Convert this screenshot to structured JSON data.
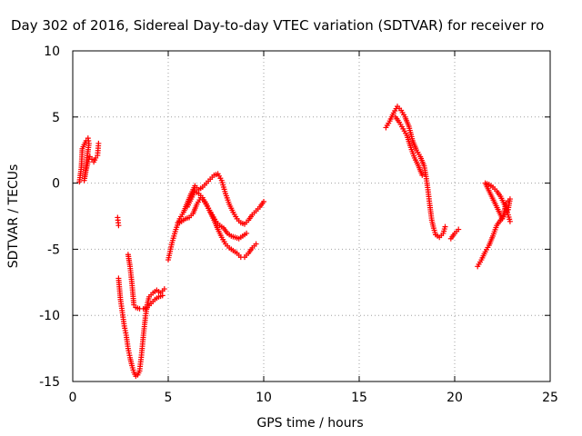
{
  "chart_data": {
    "type": "scatter",
    "title": "Day 302 of 2016, Sidereal Day-to-day VTEC variation (SDTVAR) for receiver ro",
    "xlabel": "GPS time / hours",
    "ylabel": "SDTVAR / TECUs",
    "xlim": [
      0,
      25
    ],
    "ylim": [
      -15,
      10
    ],
    "xticks": [
      0,
      5,
      10,
      15,
      20,
      25
    ],
    "yticks": [
      -15,
      -10,
      -5,
      0,
      5,
      10
    ],
    "xtick_labels": [
      "0",
      "5",
      "10",
      "15",
      "20",
      "25"
    ],
    "ytick_labels": [
      "-15",
      "-10",
      "-5",
      "0",
      "5",
      "10"
    ],
    "grid": true,
    "marker": "+",
    "series_color": "#ff0000",
    "segments": [
      [
        [
          0.35,
          0.1
        ],
        [
          0.45,
          1.2
        ],
        [
          0.5,
          2.6
        ],
        [
          0.6,
          2.9
        ],
        [
          0.7,
          3.2
        ],
        [
          0.8,
          3.4
        ],
        [
          0.85,
          3.0
        ],
        [
          0.6,
          0.2
        ],
        [
          0.7,
          1.0
        ],
        [
          0.8,
          1.6
        ],
        [
          0.9,
          2.0
        ],
        [
          1.0,
          1.8
        ],
        [
          1.1,
          1.6
        ],
        [
          1.2,
          1.9
        ],
        [
          1.3,
          2.1
        ],
        [
          1.35,
          3.0
        ]
      ],
      [
        [
          2.35,
          -2.6
        ],
        [
          2.4,
          -3.2
        ]
      ],
      [
        [
          2.4,
          -7.2
        ],
        [
          2.5,
          -8.8
        ],
        [
          2.6,
          -9.8
        ],
        [
          2.7,
          -10.8
        ],
        [
          2.8,
          -11.5
        ],
        [
          2.9,
          -12.5
        ],
        [
          3.0,
          -13.2
        ],
        [
          3.1,
          -13.8
        ],
        [
          3.2,
          -14.3
        ],
        [
          3.3,
          -14.6
        ],
        [
          3.4,
          -14.5
        ],
        [
          3.5,
          -14.2
        ],
        [
          3.6,
          -13.0
        ],
        [
          3.7,
          -11.5
        ],
        [
          3.8,
          -10.2
        ],
        [
          3.9,
          -9.2
        ],
        [
          4.0,
          -8.6
        ],
        [
          4.2,
          -8.3
        ],
        [
          4.4,
          -8.1
        ],
        [
          4.6,
          -8.3
        ],
        [
          4.8,
          -8.0
        ]
      ],
      [
        [
          2.9,
          -5.4
        ],
        [
          3.0,
          -6.3
        ],
        [
          3.1,
          -7.6
        ],
        [
          3.2,
          -9.2
        ],
        [
          3.3,
          -9.4
        ],
        [
          3.5,
          -9.5
        ],
        [
          3.7,
          -9.5
        ],
        [
          3.9,
          -9.4
        ],
        [
          4.1,
          -9.1
        ],
        [
          4.3,
          -8.8
        ],
        [
          4.5,
          -8.6
        ],
        [
          4.7,
          -8.5
        ]
      ],
      [
        [
          5.0,
          -5.8
        ],
        [
          5.2,
          -4.5
        ],
        [
          5.4,
          -3.5
        ],
        [
          5.6,
          -2.7
        ],
        [
          5.8,
          -2.2
        ],
        [
          6.0,
          -1.5
        ],
        [
          6.2,
          -0.8
        ],
        [
          6.4,
          -0.2
        ],
        [
          6.6,
          -0.5
        ],
        [
          6.8,
          -0.3
        ],
        [
          7.0,
          0.0
        ],
        [
          7.2,
          0.3
        ],
        [
          7.4,
          0.6
        ],
        [
          7.6,
          0.7
        ],
        [
          7.8,
          0.2
        ],
        [
          8.0,
          -0.8
        ],
        [
          8.2,
          -1.6
        ],
        [
          8.4,
          -2.2
        ],
        [
          8.6,
          -2.7
        ],
        [
          8.8,
          -3.0
        ],
        [
          9.0,
          -3.1
        ],
        [
          9.2,
          -2.8
        ],
        [
          9.4,
          -2.4
        ],
        [
          9.6,
          -2.1
        ],
        [
          9.8,
          -1.8
        ],
        [
          10.0,
          -1.4
        ]
      ],
      [
        [
          5.5,
          -3.0
        ],
        [
          5.7,
          -2.9
        ],
        [
          5.9,
          -2.7
        ],
        [
          6.1,
          -2.6
        ],
        [
          6.3,
          -2.3
        ],
        [
          6.5,
          -1.6
        ],
        [
          6.7,
          -1.1
        ],
        [
          6.9,
          -1.4
        ],
        [
          7.1,
          -1.9
        ],
        [
          7.3,
          -2.4
        ],
        [
          7.5,
          -2.9
        ],
        [
          7.7,
          -3.2
        ],
        [
          7.9,
          -3.4
        ],
        [
          8.1,
          -3.8
        ],
        [
          8.3,
          -4.0
        ],
        [
          8.5,
          -4.1
        ],
        [
          8.7,
          -4.2
        ],
        [
          8.9,
          -4.0
        ],
        [
          9.1,
          -3.8
        ]
      ],
      [
        [
          6.0,
          -1.8
        ],
        [
          6.2,
          -1.2
        ],
        [
          6.4,
          -0.6
        ],
        [
          6.6,
          -0.8
        ],
        [
          6.8,
          -1.1
        ],
        [
          7.0,
          -1.6
        ],
        [
          7.2,
          -2.2
        ],
        [
          7.4,
          -2.8
        ],
        [
          7.6,
          -3.5
        ],
        [
          7.8,
          -4.1
        ],
        [
          8.0,
          -4.6
        ],
        [
          8.2,
          -4.9
        ],
        [
          8.4,
          -5.1
        ],
        [
          8.6,
          -5.3
        ],
        [
          8.8,
          -5.6
        ],
        [
          9.0,
          -5.6
        ],
        [
          9.2,
          -5.3
        ],
        [
          9.4,
          -4.9
        ],
        [
          9.6,
          -4.6
        ]
      ],
      [
        [
          16.4,
          4.2
        ],
        [
          16.6,
          4.7
        ],
        [
          16.8,
          5.3
        ],
        [
          17.0,
          5.8
        ],
        [
          17.2,
          5.5
        ],
        [
          17.4,
          5.0
        ],
        [
          17.6,
          4.3
        ],
        [
          17.8,
          3.2
        ],
        [
          18.0,
          2.5
        ],
        [
          18.2,
          2.0
        ],
        [
          18.4,
          1.3
        ],
        [
          18.5,
          0.5
        ],
        [
          18.6,
          -0.5
        ],
        [
          18.7,
          -1.7
        ],
        [
          18.8,
          -2.8
        ],
        [
          18.9,
          -3.4
        ],
        [
          19.0,
          -3.9
        ],
        [
          19.2,
          -4.1
        ],
        [
          19.4,
          -3.8
        ],
        [
          19.5,
          -3.3
        ]
      ],
      [
        [
          16.9,
          5.0
        ],
        [
          17.1,
          4.6
        ],
        [
          17.3,
          4.1
        ],
        [
          17.5,
          3.6
        ],
        [
          17.7,
          2.7
        ],
        [
          17.9,
          1.9
        ],
        [
          18.1,
          1.3
        ],
        [
          18.3,
          0.6
        ]
      ],
      [
        [
          19.8,
          -4.2
        ],
        [
          20.0,
          -3.8
        ],
        [
          20.2,
          -3.5
        ]
      ],
      [
        [
          21.2,
          -6.3
        ],
        [
          21.4,
          -5.8
        ],
        [
          21.6,
          -5.2
        ],
        [
          21.8,
          -4.7
        ],
        [
          22.0,
          -4.0
        ],
        [
          22.2,
          -3.2
        ],
        [
          22.4,
          -2.8
        ],
        [
          22.6,
          -2.4
        ],
        [
          22.8,
          -2.0
        ],
        [
          22.9,
          -1.2
        ],
        [
          22.7,
          -1.5
        ],
        [
          22.5,
          -2.7
        ],
        [
          21.6,
          0.0
        ],
        [
          21.8,
          -0.1
        ],
        [
          22.0,
          -0.3
        ],
        [
          22.2,
          -0.6
        ],
        [
          22.4,
          -1.0
        ],
        [
          22.6,
          -1.6
        ],
        [
          22.8,
          -2.4
        ],
        [
          22.9,
          -2.9
        ]
      ]
    ]
  }
}
